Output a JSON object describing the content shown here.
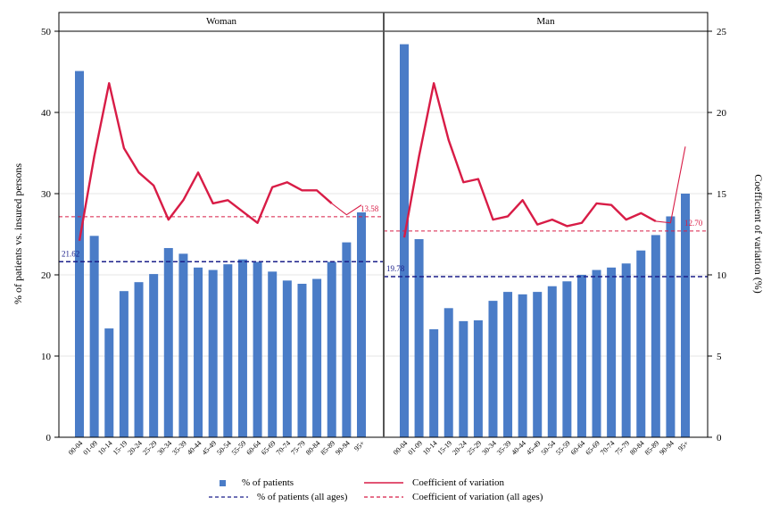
{
  "chart_data": {
    "type": "bar",
    "categories": [
      "00-04",
      "01-09",
      "10-14",
      "15-19",
      "20-24",
      "25-29",
      "30-34",
      "35-39",
      "40-44",
      "45-49",
      "50-54",
      "55-59",
      "60-64",
      "65-69",
      "70-74",
      "75-79",
      "80-84",
      "85-89",
      "90-94",
      "95+"
    ],
    "ylabel": "% of patients vs. insured persons",
    "y2label": "Coefficient of variation (%)",
    "ylim": [
      0,
      50
    ],
    "y2lim": [
      0,
      25
    ],
    "yticks": [
      0,
      10,
      20,
      30,
      40,
      50
    ],
    "y2ticks": [
      0,
      5,
      10,
      15,
      20,
      25
    ],
    "grid": true,
    "legend_position": "bottom",
    "colors": {
      "bar": "#4a7cc7",
      "cv": "#d81c46",
      "avg_patients": "#1b1f8a"
    },
    "panels": [
      {
        "title": "Woman",
        "series": [
          {
            "name": "% of patients",
            "axis": "left",
            "values": [
              45.1,
              24.8,
              13.4,
              18.0,
              19.1,
              20.1,
              23.3,
              22.6,
              20.9,
              20.6,
              21.3,
              21.9,
              21.6,
              20.4,
              19.3,
              18.9,
              19.5,
              21.6,
              24.0,
              27.7
            ]
          },
          {
            "name": "Coefficient of variation",
            "axis": "right",
            "values": [
              12.1,
              17.3,
              21.8,
              17.8,
              16.3,
              15.5,
              13.4,
              14.6,
              16.3,
              14.4,
              14.6,
              13.9,
              13.2,
              15.4,
              15.7,
              15.2,
              15.2,
              14.4,
              13.7,
              14.3
            ]
          },
          {
            "name": "% of patients (all ages)",
            "axis": "left",
            "value": 21.62,
            "label": "21.62"
          },
          {
            "name": "Coefficient of variation (all ages)",
            "axis": "right",
            "value": 13.58,
            "label": "13.58"
          }
        ]
      },
      {
        "title": "Man",
        "series": [
          {
            "name": "% of patients",
            "axis": "left",
            "values": [
              48.4,
              24.4,
              13.3,
              15.9,
              14.3,
              14.4,
              16.8,
              17.9,
              17.6,
              17.9,
              18.6,
              19.2,
              20.0,
              20.6,
              20.9,
              21.4,
              23.0,
              24.9,
              27.2,
              30.0
            ]
          },
          {
            "name": "Coefficient of variation",
            "axis": "right",
            "values": [
              12.3,
              17.3,
              21.8,
              18.3,
              15.7,
              15.9,
              13.4,
              13.6,
              14.6,
              13.1,
              13.4,
              13.0,
              13.2,
              14.4,
              14.3,
              13.4,
              13.8,
              13.3,
              13.2,
              17.9
            ]
          },
          {
            "name": "% of patients (all ages)",
            "axis": "left",
            "value": 19.78,
            "label": "19.78"
          },
          {
            "name": "Coefficient of variation (all ages)",
            "axis": "right",
            "value": 12.7,
            "label": "12.70"
          }
        ]
      }
    ]
  },
  "legend": {
    "patients": "% of patients",
    "cv": "Coefficient of variation",
    "patients_all": "% of patients (all ages)",
    "cv_all": "Coefficient of variation (all ages)"
  }
}
